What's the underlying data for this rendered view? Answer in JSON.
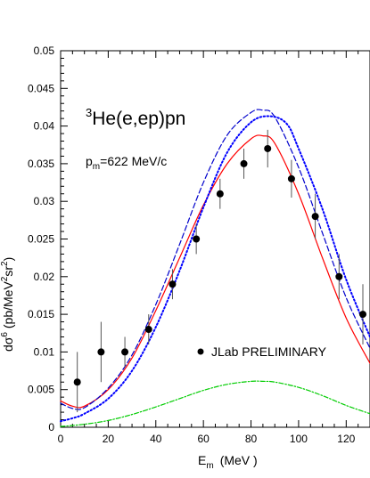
{
  "chart_data": {
    "type": "scatter",
    "title_parts": {
      "sup": "3",
      "main": "He(e,ep)pn"
    },
    "subtitle_parts": {
      "p": "p",
      "sub": "m",
      "rest": "=622 MeV/c"
    },
    "xlabel_parts": {
      "e": "E",
      "sub": "m",
      "unit": "(MeV )"
    },
    "ylabel_parts": {
      "base": "dσ",
      "sup6": "6",
      "mid": " (pb/MeV",
      "sup2a": "2",
      "sr": "sr",
      "sup2b": "2",
      "end": ")"
    },
    "legend_label": "JLab  PRELIMINARY",
    "legend_position": "bottom-right",
    "xlim": [
      0,
      130
    ],
    "ylim": [
      0,
      0.05
    ],
    "x_ticks": [
      "0",
      "20",
      "40",
      "60",
      "80",
      "100",
      "120"
    ],
    "y_ticks": [
      "0",
      "0.005",
      "0.01",
      "0.015",
      "0.02",
      "0.025",
      "0.03",
      "0.035",
      "0.04",
      "0.045",
      "0.05"
    ],
    "data_points": {
      "x": [
        7,
        17,
        27,
        37,
        47,
        57,
        67,
        77,
        87,
        97,
        107,
        117,
        127
      ],
      "y": [
        0.006,
        0.01,
        0.01,
        0.013,
        0.019,
        0.025,
        0.031,
        0.035,
        0.037,
        0.033,
        0.028,
        0.02,
        0.015
      ],
      "err": [
        0.004,
        0.004,
        0.002,
        0.002,
        0.002,
        0.002,
        0.002,
        0.002,
        0.0025,
        0.0025,
        0.003,
        0.003,
        0.004
      ]
    },
    "curves": [
      {
        "style": "solid",
        "color": "#ff0000",
        "x": [
          0,
          5,
          10,
          20,
          30,
          40,
          50,
          60,
          70,
          80,
          85,
          90,
          100,
          110,
          120,
          130
        ],
        "y": [
          0.0035,
          0.0028,
          0.0028,
          0.005,
          0.0092,
          0.0155,
          0.0225,
          0.0295,
          0.035,
          0.0383,
          0.0387,
          0.0377,
          0.031,
          0.0225,
          0.0145,
          0.0085
        ]
      },
      {
        "style": "dashed",
        "color": "#0000cc",
        "x": [
          0,
          5,
          10,
          20,
          30,
          40,
          50,
          60,
          70,
          80,
          85,
          90,
          100,
          110,
          120,
          130
        ],
        "y": [
          0.0032,
          0.0025,
          0.0026,
          0.0052,
          0.0096,
          0.0163,
          0.0243,
          0.0325,
          0.0388,
          0.0418,
          0.0421,
          0.0412,
          0.0345,
          0.0258,
          0.0172,
          0.0105
        ]
      },
      {
        "style": "dotted",
        "color": "#0000ff",
        "x": [
          0,
          5,
          10,
          20,
          30,
          40,
          50,
          60,
          70,
          80,
          88,
          95,
          100,
          110,
          120,
          130
        ],
        "y": [
          0.0008,
          0.0012,
          0.0018,
          0.0038,
          0.0075,
          0.0133,
          0.0208,
          0.0292,
          0.0365,
          0.0405,
          0.0413,
          0.0403,
          0.037,
          0.029,
          0.0196,
          0.012
        ]
      },
      {
        "style": "dashdot",
        "color": "#00cc00",
        "x": [
          0,
          10,
          20,
          30,
          40,
          50,
          60,
          70,
          80,
          85,
          90,
          100,
          110,
          120,
          130
        ],
        "y": [
          0.0001,
          0.0004,
          0.0009,
          0.0017,
          0.0027,
          0.0038,
          0.0049,
          0.0057,
          0.0061,
          0.0061,
          0.006,
          0.0053,
          0.0042,
          0.0029,
          0.0018
        ]
      }
    ],
    "grid": false
  }
}
